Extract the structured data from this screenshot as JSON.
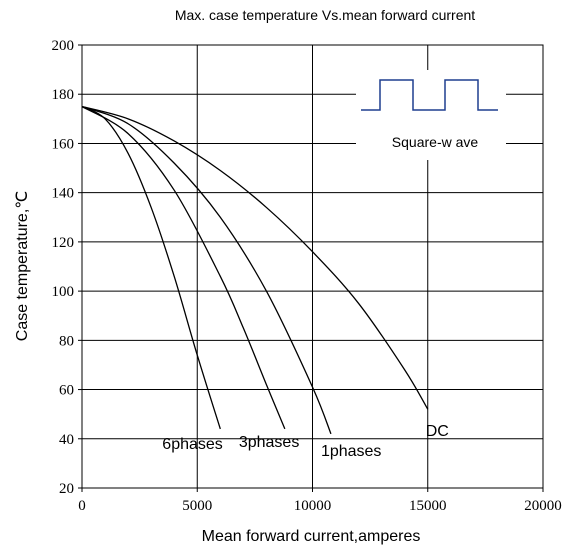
{
  "chart_data": {
    "type": "line",
    "title": "Max. case temperature  Vs.mean forward current",
    "xlabel": "Mean forward  current,amperes",
    "ylabel": "Case temperature,℃",
    "xlim": [
      0,
      20000
    ],
    "ylim": [
      20,
      200
    ],
    "x_ticks": [
      "0",
      "5000",
      "10000",
      "15000",
      "20000"
    ],
    "y_ticks": [
      "20",
      "40",
      "60",
      "80",
      "100",
      "120",
      "140",
      "160",
      "180",
      "200"
    ],
    "grid": true,
    "series": [
      {
        "name": "6phases",
        "x": [
          0,
          1000,
          2000,
          3000,
          4000,
          5000,
          6000
        ],
        "y": [
          175,
          170,
          156,
          134,
          106,
          74,
          44
        ]
      },
      {
        "name": "3phases",
        "x": [
          0,
          2000,
          4000,
          6000,
          7000,
          8000,
          8800
        ],
        "y": [
          175,
          164,
          141,
          106,
          85,
          62,
          44
        ]
      },
      {
        "name": "1phases",
        "x": [
          0,
          2000,
          4000,
          6000,
          8000,
          10000,
          10800
        ],
        "y": [
          175,
          168,
          152,
          130,
          100,
          61,
          42
        ]
      },
      {
        "name": "DC",
        "x": [
          0,
          2000,
          4000,
          6000,
          8000,
          10000,
          12000,
          14000,
          15000
        ],
        "y": [
          175,
          170,
          161,
          149,
          134,
          116,
          95,
          68,
          52
        ]
      }
    ],
    "inset": {
      "label": "Square-w ave",
      "kind": "square-wave"
    },
    "colors": {
      "series": "#000000",
      "grid": "#000000",
      "inset_wave": "#1f3f8f"
    }
  }
}
